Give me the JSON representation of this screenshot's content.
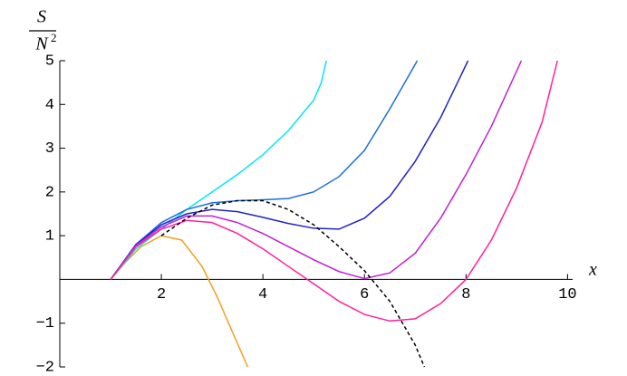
{
  "chart_data": {
    "type": "line",
    "xlabel": "x",
    "ylabel": {
      "numerator": "S",
      "denominator": "N",
      "exponent": "2"
    },
    "xlim": [
      0,
      10.1
    ],
    "ylim": [
      -2,
      5
    ],
    "xticks": [
      2,
      4,
      6,
      8,
      10
    ],
    "yticks": [
      {
        "value": -2,
        "label": "−2"
      },
      {
        "value": -1,
        "label": "−1"
      },
      1,
      2,
      3,
      4,
      5
    ],
    "series": [
      {
        "color": "#f0a020",
        "x": [
          1,
          1.3,
          1.6,
          2,
          2.4,
          2.8,
          3.1,
          3.4,
          3.7
        ],
        "values": [
          0,
          0.4,
          0.75,
          1.0,
          0.9,
          0.3,
          -0.4,
          -1.2,
          -2.0
        ]
      },
      {
        "color": "#00e8f0",
        "x": [
          1,
          1.5,
          2,
          2.5,
          3,
          3.5,
          4,
          4.5,
          5,
          5.15,
          5.25
        ],
        "values": [
          0,
          0.7,
          1.15,
          1.6,
          2.0,
          2.4,
          2.85,
          3.4,
          4.1,
          4.5,
          5.0
        ]
      },
      {
        "color": "#1a6fdc",
        "x": [
          1,
          1.5,
          2,
          2.5,
          3,
          3.5,
          4,
          4.5,
          5,
          5.5,
          6,
          6.5,
          7.04
        ],
        "values": [
          0,
          0.8,
          1.3,
          1.6,
          1.75,
          1.8,
          1.82,
          1.85,
          2.0,
          2.35,
          2.95,
          3.9,
          5.0
        ]
      },
      {
        "color": "#2222c8",
        "x": [
          1,
          1.5,
          2,
          2.5,
          3,
          3.5,
          4,
          4.5,
          5,
          5.5,
          6,
          6.5,
          7,
          7.5,
          8.04
        ],
        "values": [
          0,
          0.8,
          1.25,
          1.5,
          1.6,
          1.55,
          1.42,
          1.28,
          1.17,
          1.15,
          1.4,
          1.9,
          2.7,
          3.7,
          5.0
        ]
      },
      {
        "color": "#c020d0",
        "x": [
          1,
          1.5,
          2,
          2.5,
          3,
          3.5,
          4,
          4.5,
          5,
          5.5,
          6,
          6.5,
          7,
          7.5,
          8,
          8.5,
          9.09
        ],
        "values": [
          0,
          0.78,
          1.2,
          1.45,
          1.45,
          1.3,
          1.05,
          0.75,
          0.45,
          0.18,
          0.02,
          0.15,
          0.6,
          1.4,
          2.4,
          3.5,
          5.0
        ]
      },
      {
        "color": "#ff1fa0",
        "x": [
          1,
          1.5,
          2,
          2.5,
          3,
          3.5,
          4,
          4.5,
          5,
          5.5,
          6,
          6.5,
          7,
          7.5,
          8,
          8.5,
          9,
          9.5,
          9.8
        ],
        "values": [
          0,
          0.75,
          1.15,
          1.35,
          1.3,
          1.05,
          0.7,
          0.3,
          -0.1,
          -0.5,
          -0.8,
          -0.95,
          -0.9,
          -0.55,
          0.0,
          0.9,
          2.1,
          3.6,
          5.0
        ]
      },
      {
        "color": "#000000",
        "dashed": true,
        "x": [
          2,
          2.5,
          3,
          3.5,
          4,
          4.5,
          5,
          5.5,
          6,
          6.5,
          7,
          7.18
        ],
        "values": [
          1.0,
          1.4,
          1.7,
          1.8,
          1.8,
          1.6,
          1.25,
          0.75,
          0.2,
          -0.5,
          -1.5,
          -2.0
        ]
      }
    ]
  }
}
